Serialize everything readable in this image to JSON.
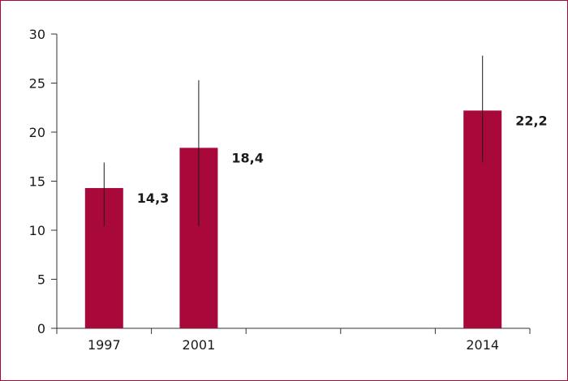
{
  "chart_data": {
    "type": "bar",
    "categories": [
      "1997",
      "2001",
      "",
      "",
      "2014"
    ],
    "values": [
      14.3,
      18.4,
      null,
      null,
      22.2
    ],
    "value_labels": [
      "14,3",
      "18,4",
      "",
      "",
      "22,2"
    ],
    "error_bars": [
      {
        "low": 10.4,
        "high": 16.9
      },
      {
        "low": 10.4,
        "high": 25.3
      },
      null,
      null,
      {
        "low": 16.9,
        "high": 27.8
      }
    ],
    "title": "",
    "xlabel": "",
    "ylabel": "",
    "ylim": [
      0,
      30
    ],
    "yticks": [
      0,
      5,
      10,
      15,
      20,
      25,
      30
    ],
    "grid": false,
    "colors": {
      "bar": "#a8093a",
      "frame": "#a8093a",
      "axis": "#333333",
      "error_bar": "#1a1a1a"
    }
  }
}
